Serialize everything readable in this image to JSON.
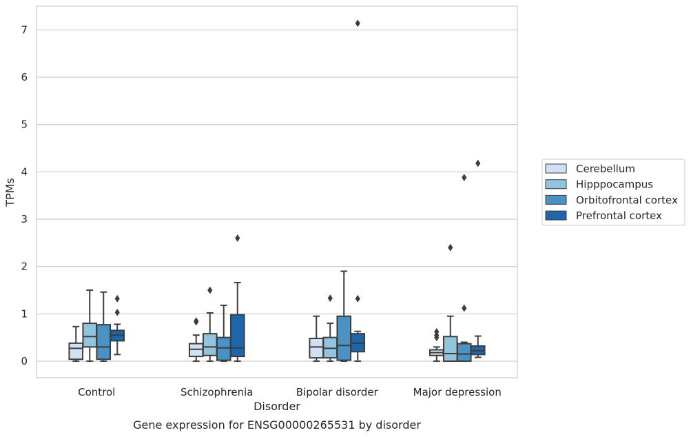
{
  "caption": "Gene expression for ENSG00000265531 by disorder",
  "chart_data": {
    "type": "box",
    "xlabel": "Disorder",
    "ylabel": "TPMs",
    "ylim": [
      -0.35,
      7.5
    ],
    "yticks": [
      0,
      1,
      2,
      3,
      4,
      5,
      6,
      7
    ],
    "grid": "horizontal",
    "legend_position": "right",
    "categories": [
      "Control",
      "Schizophrenia",
      "Bipolar disorder",
      "Major depression"
    ],
    "series": [
      {
        "name": "Cerebellum",
        "color": "#cfe1f2",
        "boxes": [
          {
            "category": "Control",
            "whisker_low": 0.0,
            "q1": 0.04,
            "median": 0.27,
            "q3": 0.38,
            "whisker_high": 0.73,
            "outliers": []
          },
          {
            "category": "Schizophrenia",
            "whisker_low": 0.0,
            "q1": 0.1,
            "median": 0.25,
            "q3": 0.37,
            "whisker_high": 0.55,
            "outliers": [
              0.85,
              0.83
            ]
          },
          {
            "category": "Bipolar disorder",
            "whisker_low": 0.0,
            "q1": 0.07,
            "median": 0.3,
            "q3": 0.48,
            "whisker_high": 0.95,
            "outliers": []
          },
          {
            "category": "Major depression",
            "whisker_low": 0.0,
            "q1": 0.12,
            "median": 0.18,
            "q3": 0.24,
            "whisker_high": 0.3,
            "outliers": [
              0.5,
              0.55,
              0.62
            ]
          }
        ]
      },
      {
        "name": "Hipppocampus",
        "color": "#93c4de",
        "boxes": [
          {
            "category": "Control",
            "whisker_low": 0.0,
            "q1": 0.3,
            "median": 0.52,
            "q3": 0.8,
            "whisker_high": 1.5,
            "outliers": []
          },
          {
            "category": "Schizophrenia",
            "whisker_low": 0.0,
            "q1": 0.12,
            "median": 0.3,
            "q3": 0.58,
            "whisker_high": 1.02,
            "outliers": [
              1.5
            ]
          },
          {
            "category": "Bipolar disorder",
            "whisker_low": 0.0,
            "q1": 0.07,
            "median": 0.27,
            "q3": 0.5,
            "whisker_high": 0.8,
            "outliers": [
              1.33
            ]
          },
          {
            "category": "Major depression",
            "whisker_low": 0.0,
            "q1": 0.0,
            "median": 0.16,
            "q3": 0.52,
            "whisker_high": 0.95,
            "outliers": [
              2.4
            ]
          }
        ]
      },
      {
        "name": "Orbitofrontal cortex",
        "color": "#4a91c4",
        "boxes": [
          {
            "category": "Control",
            "whisker_low": 0.0,
            "q1": 0.04,
            "median": 0.3,
            "q3": 0.77,
            "whisker_high": 1.46,
            "outliers": []
          },
          {
            "category": "Schizophrenia",
            "whisker_low": 0.0,
            "q1": 0.02,
            "median": 0.28,
            "q3": 0.5,
            "whisker_high": 1.18,
            "outliers": []
          },
          {
            "category": "Bipolar disorder",
            "whisker_low": 0.0,
            "q1": 0.02,
            "median": 0.33,
            "q3": 0.95,
            "whisker_high": 1.9,
            "outliers": []
          },
          {
            "category": "Major depression",
            "whisker_low": 0.0,
            "q1": 0.0,
            "median": 0.15,
            "q3": 0.37,
            "whisker_high": 0.4,
            "outliers": [
              1.12,
              3.88
            ]
          }
        ]
      },
      {
        "name": "Prefrontal cortex",
        "color": "#1f65a9",
        "boxes": [
          {
            "category": "Control",
            "whisker_low": 0.14,
            "q1": 0.43,
            "median": 0.55,
            "q3": 0.65,
            "whisker_high": 0.78,
            "outliers": [
              1.03,
              1.32
            ]
          },
          {
            "category": "Schizophrenia",
            "whisker_low": 0.0,
            "q1": 0.1,
            "median": 0.28,
            "q3": 0.98,
            "whisker_high": 1.66,
            "outliers": [
              2.6
            ]
          },
          {
            "category": "Bipolar disorder",
            "whisker_low": 0.0,
            "q1": 0.2,
            "median": 0.38,
            "q3": 0.58,
            "whisker_high": 0.63,
            "outliers": [
              1.32,
              7.14
            ]
          },
          {
            "category": "Major depression",
            "whisker_low": 0.08,
            "q1": 0.14,
            "median": 0.22,
            "q3": 0.32,
            "whisker_high": 0.53,
            "outliers": [
              4.18
            ]
          }
        ]
      }
    ]
  }
}
